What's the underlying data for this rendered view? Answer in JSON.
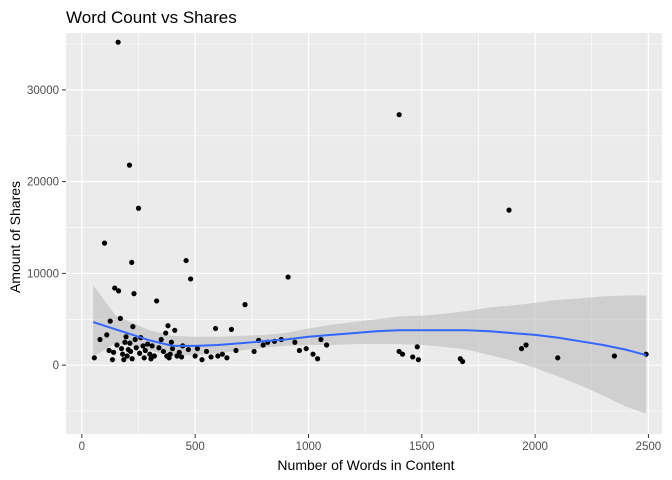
{
  "chart_data": {
    "type": "scatter",
    "title": "Word Count vs Shares",
    "xlabel": "Number of Words in Content",
    "ylabel": "Amount of Shares",
    "xlim": [
      -70,
      2560
    ],
    "ylim": [
      -7500,
      36200
    ],
    "x_ticks": [
      0,
      500,
      1000,
      1500,
      2000,
      2500
    ],
    "x_tick_labels": [
      "0",
      "500",
      "1000",
      "1500",
      "2000",
      "2500"
    ],
    "y_ticks": [
      0,
      10000,
      20000,
      30000
    ],
    "y_tick_labels": [
      "0",
      "10000",
      "20000",
      "30000"
    ],
    "grid": true,
    "panel_background": "#ebebeb",
    "grid_color": "#ffffff",
    "point_color": "#000000",
    "smooth_color": "#3366ff",
    "ribbon_color": "#bdbdbd",
    "points": [
      [
        55,
        800
      ],
      [
        80,
        2800
      ],
      [
        100,
        13300
      ],
      [
        110,
        3300
      ],
      [
        120,
        1600
      ],
      [
        125,
        4800
      ],
      [
        135,
        600
      ],
      [
        140,
        1400
      ],
      [
        145,
        8400
      ],
      [
        155,
        2200
      ],
      [
        160,
        35200
      ],
      [
        162,
        8100
      ],
      [
        170,
        5100
      ],
      [
        175,
        1800
      ],
      [
        180,
        1200
      ],
      [
        185,
        600
      ],
      [
        190,
        2500
      ],
      [
        195,
        3100
      ],
      [
        200,
        1000
      ],
      [
        205,
        1700
      ],
      [
        210,
        21800
      ],
      [
        212,
        2400
      ],
      [
        215,
        1500
      ],
      [
        220,
        11200
      ],
      [
        222,
        700
      ],
      [
        225,
        4200
      ],
      [
        230,
        7800
      ],
      [
        235,
        2800
      ],
      [
        240,
        1900
      ],
      [
        250,
        17100
      ],
      [
        255,
        1300
      ],
      [
        260,
        3000
      ],
      [
        270,
        2100
      ],
      [
        275,
        800
      ],
      [
        280,
        1600
      ],
      [
        290,
        2300
      ],
      [
        300,
        1200
      ],
      [
        305,
        700
      ],
      [
        310,
        2100
      ],
      [
        320,
        1000
      ],
      [
        330,
        7000
      ],
      [
        340,
        1900
      ],
      [
        350,
        2800
      ],
      [
        360,
        1500
      ],
      [
        370,
        3500
      ],
      [
        375,
        1000
      ],
      [
        380,
        4300
      ],
      [
        385,
        800
      ],
      [
        390,
        1200
      ],
      [
        395,
        2500
      ],
      [
        400,
        1800
      ],
      [
        410,
        3800
      ],
      [
        420,
        1000
      ],
      [
        430,
        1400
      ],
      [
        440,
        900
      ],
      [
        445,
        2100
      ],
      [
        460,
        11400
      ],
      [
        470,
        1700
      ],
      [
        480,
        9400
      ],
      [
        500,
        1000
      ],
      [
        510,
        1800
      ],
      [
        530,
        600
      ],
      [
        550,
        1500
      ],
      [
        570,
        900
      ],
      [
        590,
        4000
      ],
      [
        600,
        1000
      ],
      [
        620,
        1200
      ],
      [
        640,
        800
      ],
      [
        660,
        3900
      ],
      [
        680,
        1600
      ],
      [
        720,
        6600
      ],
      [
        760,
        1500
      ],
      [
        780,
        2700
      ],
      [
        800,
        2200
      ],
      [
        820,
        2500
      ],
      [
        850,
        2600
      ],
      [
        880,
        2800
      ],
      [
        910,
        9600
      ],
      [
        940,
        2500
      ],
      [
        960,
        1600
      ],
      [
        990,
        1800
      ],
      [
        1020,
        1200
      ],
      [
        1040,
        700
      ],
      [
        1055,
        2800
      ],
      [
        1080,
        2200
      ],
      [
        1400,
        27300
      ],
      [
        1400,
        1500
      ],
      [
        1415,
        1200
      ],
      [
        1460,
        900
      ],
      [
        1480,
        2000
      ],
      [
        1485,
        600
      ],
      [
        1670,
        700
      ],
      [
        1680,
        400
      ],
      [
        1885,
        16900
      ],
      [
        1940,
        1800
      ],
      [
        1960,
        2200
      ],
      [
        2100,
        800
      ],
      [
        2350,
        1000
      ],
      [
        2490,
        1200
      ]
    ],
    "smooth_fit": [
      [
        50,
        4700
      ],
      [
        150,
        3900
      ],
      [
        300,
        2700
      ],
      [
        400,
        2100
      ],
      [
        500,
        2100
      ],
      [
        600,
        2200
      ],
      [
        700,
        2400
      ],
      [
        800,
        2600
      ],
      [
        900,
        2800
      ],
      [
        1000,
        3100
      ],
      [
        1100,
        3300
      ],
      [
        1200,
        3500
      ],
      [
        1300,
        3700
      ],
      [
        1400,
        3800
      ],
      [
        1500,
        3800
      ],
      [
        1600,
        3800
      ],
      [
        1700,
        3800
      ],
      [
        1800,
        3700
      ],
      [
        1900,
        3500
      ],
      [
        2000,
        3300
      ],
      [
        2100,
        3000
      ],
      [
        2200,
        2600
      ],
      [
        2300,
        2200
      ],
      [
        2400,
        1700
      ],
      [
        2490,
        1100
      ]
    ],
    "ribbon_lower": [
      [
        50,
        900
      ],
      [
        150,
        2400
      ],
      [
        300,
        1600
      ],
      [
        400,
        1000
      ],
      [
        500,
        1100
      ],
      [
        600,
        1300
      ],
      [
        700,
        1600
      ],
      [
        800,
        1900
      ],
      [
        900,
        2100
      ],
      [
        1000,
        2200
      ],
      [
        1100,
        2200
      ],
      [
        1200,
        2300
      ],
      [
        1300,
        2300
      ],
      [
        1400,
        2300
      ],
      [
        1500,
        2200
      ],
      [
        1600,
        2000
      ],
      [
        1700,
        1700
      ],
      [
        1800,
        1100
      ],
      [
        1900,
        500
      ],
      [
        2000,
        -300
      ],
      [
        2100,
        -1200
      ],
      [
        2200,
        -2200
      ],
      [
        2300,
        -3300
      ],
      [
        2400,
        -4500
      ],
      [
        2490,
        -5300
      ]
    ],
    "ribbon_upper": [
      [
        50,
        8700
      ],
      [
        150,
        5400
      ],
      [
        300,
        3800
      ],
      [
        400,
        3200
      ],
      [
        500,
        3100
      ],
      [
        600,
        3100
      ],
      [
        700,
        3200
      ],
      [
        800,
        3300
      ],
      [
        900,
        3500
      ],
      [
        1000,
        4000
      ],
      [
        1100,
        4400
      ],
      [
        1200,
        4700
      ],
      [
        1300,
        5000
      ],
      [
        1400,
        5300
      ],
      [
        1500,
        5400
      ],
      [
        1600,
        5600
      ],
      [
        1700,
        5900
      ],
      [
        1800,
        6300
      ],
      [
        1900,
        6500
      ],
      [
        2000,
        6800
      ],
      [
        2100,
        7100
      ],
      [
        2200,
        7300
      ],
      [
        2300,
        7500
      ],
      [
        2400,
        7600
      ],
      [
        2490,
        7600
      ]
    ]
  }
}
